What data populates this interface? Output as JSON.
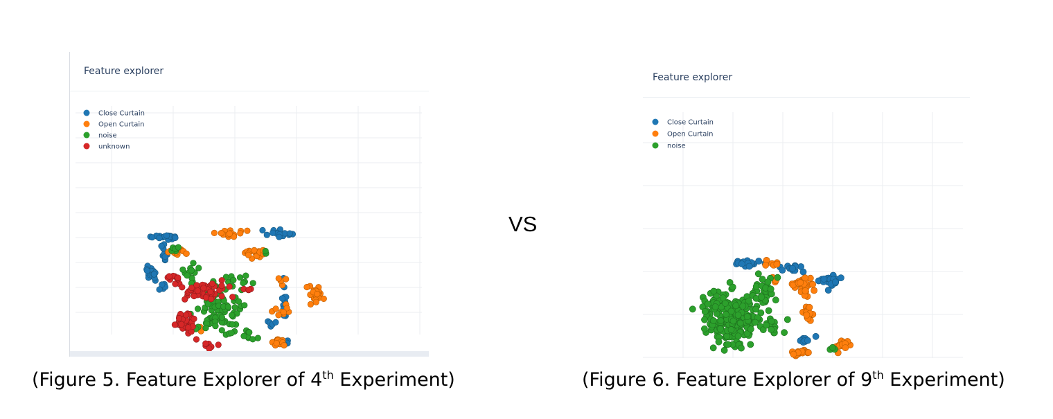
{
  "vs_text": "VS",
  "colors": {
    "Close Curtain": "#1f77b4",
    "Open Curtain": "#ff7f0e",
    "noise": "#2ca02c",
    "unknown": "#d62728"
  },
  "captions": [
    {
      "pre": "(Figure 5. Feature Explorer of 4",
      "sup": "th",
      "post": " Experiment)"
    },
    {
      "pre": "(Figure 6. Feature Explorer of 9",
      "sup": "th",
      "post": " Experiment)"
    }
  ],
  "chart_data": [
    {
      "type": "scatter",
      "title": "Feature explorer",
      "legend": [
        "Close Curtain",
        "Open Curtain",
        "noise",
        "unknown"
      ],
      "legend_position": "top-left",
      "grid": true,
      "xlim": [
        0,
        100
      ],
      "ylim": [
        0,
        100
      ],
      "series": [
        {
          "name": "Close Curtain",
          "clusters": [
            {
              "cx": 20,
              "cy": 78,
              "rx": 6,
              "ry": 2,
              "n": 18
            },
            {
              "cx": 20,
              "cy": 70,
              "rx": 2,
              "ry": 5,
              "n": 10
            },
            {
              "cx": 15,
              "cy": 58,
              "rx": 3,
              "ry": 5,
              "n": 20
            },
            {
              "cx": 20,
              "cy": 52,
              "rx": 2,
              "ry": 3,
              "n": 6
            },
            {
              "cx": 68,
              "cy": 80,
              "rx": 6,
              "ry": 2,
              "n": 14
            },
            {
              "cx": 71,
              "cy": 45,
              "rx": 2,
              "ry": 10,
              "n": 14
            },
            {
              "cx": 66,
              "cy": 32,
              "rx": 4,
              "ry": 2,
              "n": 5
            },
            {
              "cx": 72,
              "cy": 22,
              "rx": 2,
              "ry": 3,
              "n": 4
            }
          ]
        },
        {
          "name": "Open Curtain",
          "clusters": [
            {
              "cx": 47,
              "cy": 80,
              "rx": 8,
              "ry": 2,
              "n": 18
            },
            {
              "cx": 58,
              "cy": 70,
              "rx": 6,
              "ry": 3,
              "n": 18
            },
            {
              "cx": 28,
              "cy": 70,
              "rx": 6,
              "ry": 3,
              "n": 12
            },
            {
              "cx": 84,
              "cy": 48,
              "rx": 4,
              "ry": 5,
              "n": 22
            },
            {
              "cx": 70,
              "cy": 38,
              "rx": 4,
              "ry": 3,
              "n": 10
            },
            {
              "cx": 69,
              "cy": 22,
              "rx": 4,
              "ry": 3,
              "n": 14
            },
            {
              "cx": 33,
              "cy": 30,
              "rx": 3,
              "ry": 2,
              "n": 4
            },
            {
              "cx": 70,
              "cy": 55,
              "rx": 3,
              "ry": 3,
              "n": 4
            }
          ]
        },
        {
          "name": "noise",
          "clusters": [
            {
              "cx": 44,
              "cy": 38,
              "rx": 12,
              "ry": 14,
              "n": 85
            },
            {
              "cx": 32,
              "cy": 60,
              "rx": 6,
              "ry": 6,
              "n": 12
            },
            {
              "cx": 52,
              "cy": 55,
              "rx": 6,
              "ry": 4,
              "n": 10
            },
            {
              "cx": 55,
              "cy": 25,
              "rx": 5,
              "ry": 3,
              "n": 8
            },
            {
              "cx": 26,
              "cy": 72,
              "rx": 5,
              "ry": 3,
              "n": 6
            },
            {
              "cx": 62,
              "cy": 70,
              "rx": 2,
              "ry": 2,
              "n": 2
            }
          ]
        },
        {
          "name": "unknown",
          "clusters": [
            {
              "cx": 36,
              "cy": 50,
              "rx": 10,
              "ry": 6,
              "n": 50
            },
            {
              "cx": 28,
              "cy": 32,
              "rx": 5,
              "ry": 7,
              "n": 40
            },
            {
              "cx": 40,
              "cy": 20,
              "rx": 4,
              "ry": 3,
              "n": 8
            },
            {
              "cx": 24,
              "cy": 56,
              "rx": 4,
              "ry": 3,
              "n": 8
            },
            {
              "cx": 55,
              "cy": 50,
              "rx": 3,
              "ry": 3,
              "n": 4
            }
          ]
        }
      ]
    },
    {
      "type": "scatter",
      "title": "Feature explorer",
      "legend": [
        "Close Curtain",
        "Open Curtain",
        "noise"
      ],
      "legend_position": "top-left",
      "grid": true,
      "xlim": [
        0,
        100
      ],
      "ylim": [
        0,
        100
      ],
      "series": [
        {
          "name": "Close Curtain",
          "clusters": [
            {
              "cx": 36,
              "cy": 74,
              "rx": 6,
              "ry": 2,
              "n": 20
            },
            {
              "cx": 55,
              "cy": 71,
              "rx": 5,
              "ry": 2,
              "n": 12
            },
            {
              "cx": 70,
              "cy": 64,
              "rx": 4,
              "ry": 4,
              "n": 20
            },
            {
              "cx": 60,
              "cy": 32,
              "rx": 4,
              "ry": 3,
              "n": 8
            }
          ]
        },
        {
          "name": "Open Curtain",
          "clusters": [
            {
              "cx": 59,
              "cy": 62,
              "rx": 5,
              "ry": 6,
              "n": 30
            },
            {
              "cx": 61,
              "cy": 46,
              "rx": 3,
              "ry": 5,
              "n": 14
            },
            {
              "cx": 58,
              "cy": 24,
              "rx": 4,
              "ry": 3,
              "n": 18
            },
            {
              "cx": 76,
              "cy": 28,
              "rx": 3,
              "ry": 4,
              "n": 16
            },
            {
              "cx": 45,
              "cy": 74,
              "rx": 4,
              "ry": 2,
              "n": 6
            },
            {
              "cx": 47,
              "cy": 65,
              "rx": 2,
              "ry": 3,
              "n": 4
            }
          ]
        },
        {
          "name": "noise",
          "clusters": [
            {
              "cx": 30,
              "cy": 43,
              "rx": 14,
              "ry": 18,
              "n": 210
            },
            {
              "cx": 43,
              "cy": 60,
              "rx": 6,
              "ry": 8,
              "n": 20
            },
            {
              "cx": 20,
              "cy": 50,
              "rx": 4,
              "ry": 10,
              "n": 15
            },
            {
              "cx": 48,
              "cy": 40,
              "rx": 5,
              "ry": 6,
              "n": 10
            },
            {
              "cx": 70,
              "cy": 26,
              "rx": 3,
              "ry": 2,
              "n": 3
            }
          ]
        }
      ]
    }
  ]
}
